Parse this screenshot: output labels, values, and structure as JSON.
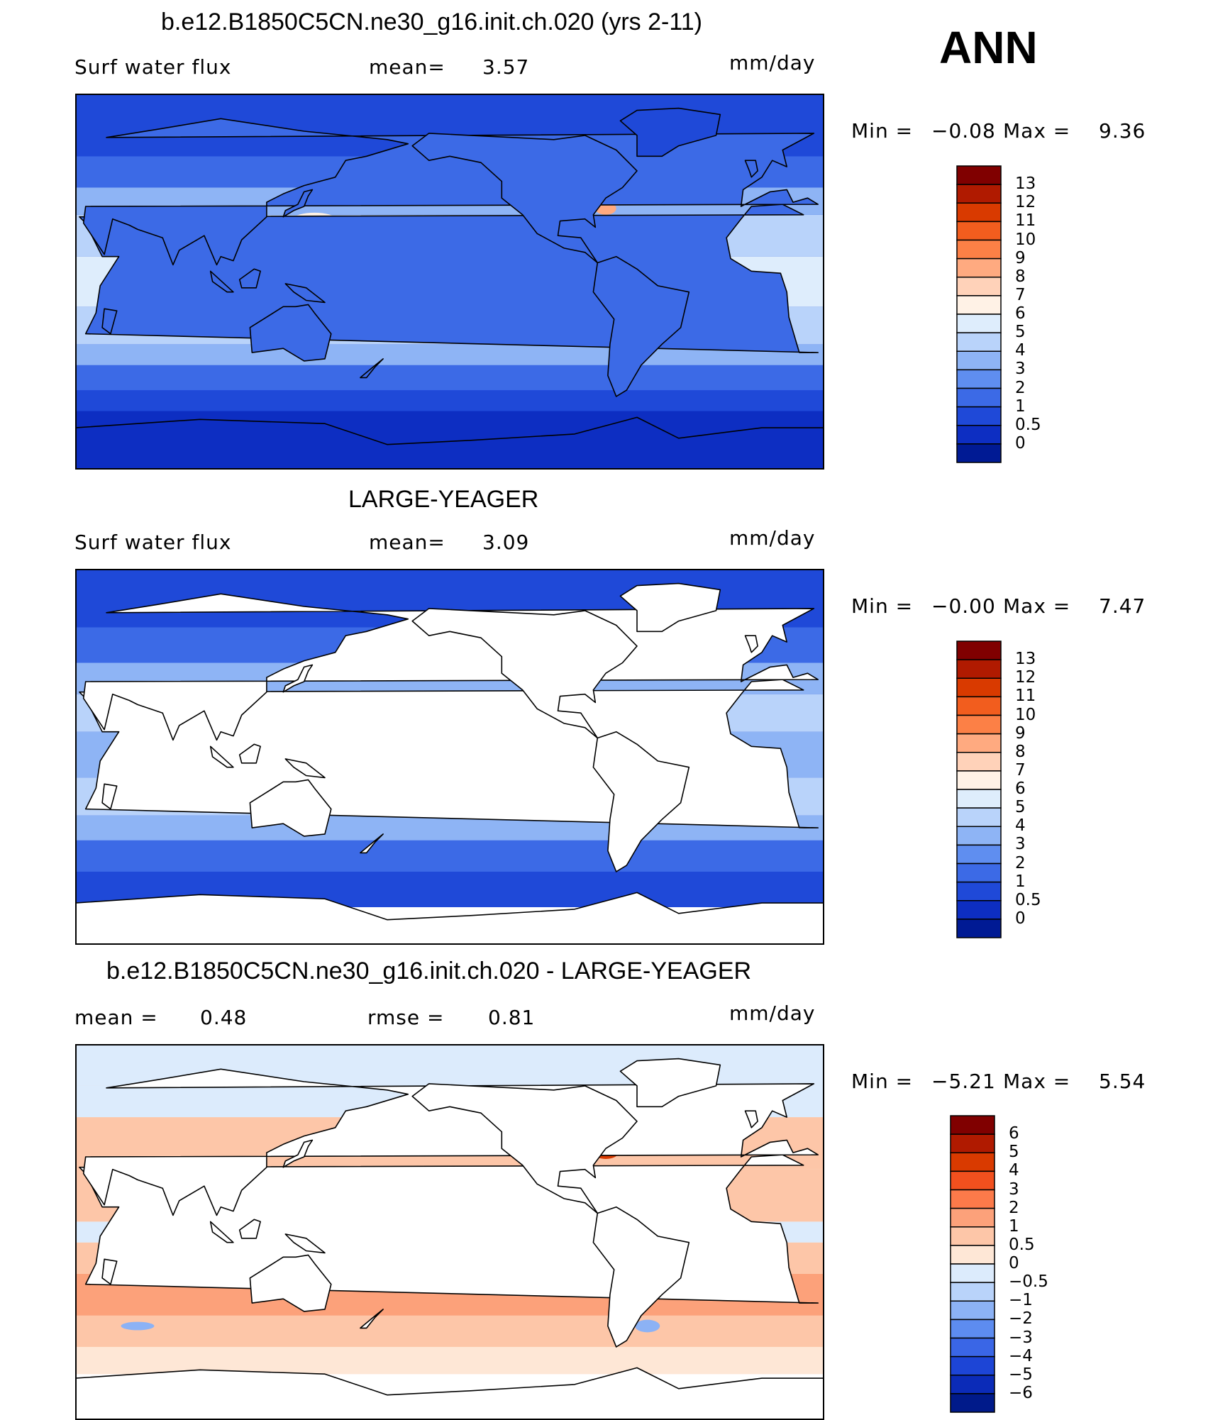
{
  "season": "ANN",
  "panels": [
    {
      "title": "b.e12.B1850C5CN.ne30_g16.init.ch.020 (yrs 2-11)",
      "left_label": "Surf water flux",
      "stat1_label": "mean=",
      "stat1_value": "3.57",
      "stat2_label": "",
      "stat2_value": "",
      "units": "mm/day",
      "min_label": "Min =",
      "min_value": "−0.08",
      "max_label": "Max =",
      "max_value": "9.36",
      "type": "model",
      "colorbar": {
        "labels": [
          "13",
          "12",
          "11",
          "10",
          "9",
          "8",
          "7",
          "6",
          "5",
          "4",
          "3",
          "2",
          "1",
          "0.5",
          "0"
        ],
        "colors": [
          "#800000",
          "#b01a00",
          "#d93a00",
          "#f25d1e",
          "#fc8046",
          "#ffaa80",
          "#ffd2b9",
          "#fff2e6",
          "#deedfc",
          "#b9d3fa",
          "#8eb4f5",
          "#5f8ef0",
          "#3c6ae6",
          "#1f49d8",
          "#0d2ec2",
          "#001a94"
        ]
      }
    },
    {
      "title": "LARGE-YEAGER",
      "left_label": "Surf water flux",
      "stat1_label": "mean=",
      "stat1_value": "3.09",
      "stat2_label": "",
      "stat2_value": "",
      "units": "mm/day",
      "min_label": "Min =",
      "min_value": "−0.00",
      "max_label": "Max =",
      "max_value": "7.47",
      "type": "obs",
      "colorbar": {
        "labels": [
          "13",
          "12",
          "11",
          "10",
          "9",
          "8",
          "7",
          "6",
          "5",
          "4",
          "3",
          "2",
          "1",
          "0.5",
          "0"
        ],
        "colors": [
          "#800000",
          "#b01a00",
          "#d93a00",
          "#f25d1e",
          "#fc8046",
          "#ffaa80",
          "#ffd2b9",
          "#fff2e6",
          "#deedfc",
          "#b9d3fa",
          "#8eb4f5",
          "#5f8ef0",
          "#3c6ae6",
          "#1f49d8",
          "#0d2ec2",
          "#001a94"
        ]
      }
    },
    {
      "title": "b.e12.B1850C5CN.ne30_g16.init.ch.020 - LARGE-YEAGER",
      "left_label": "",
      "stat1_label": "mean =",
      "stat1_value": "0.48",
      "stat2_label": "rmse =",
      "stat2_value": "0.81",
      "units": "mm/day",
      "min_label": "Min =",
      "min_value": "−5.21",
      "max_label": "Max =",
      "max_value": "5.54",
      "type": "diff",
      "colorbar": {
        "labels": [
          "6",
          "5",
          "4",
          "3",
          "2",
          "1",
          "0.5",
          "0",
          "−0.5",
          "−1",
          "−2",
          "−3",
          "−4",
          "−5",
          "−6"
        ],
        "colors": [
          "#800000",
          "#b01a00",
          "#d93a00",
          "#f2501e",
          "#fc7a4a",
          "#fca17a",
          "#fdc6a8",
          "#fee7d6",
          "#dcebfc",
          "#b9d3fa",
          "#8cb2f5",
          "#5d8cf0",
          "#3a66e6",
          "#1d45d6",
          "#0b2bb8",
          "#001a8a"
        ]
      }
    }
  ]
}
